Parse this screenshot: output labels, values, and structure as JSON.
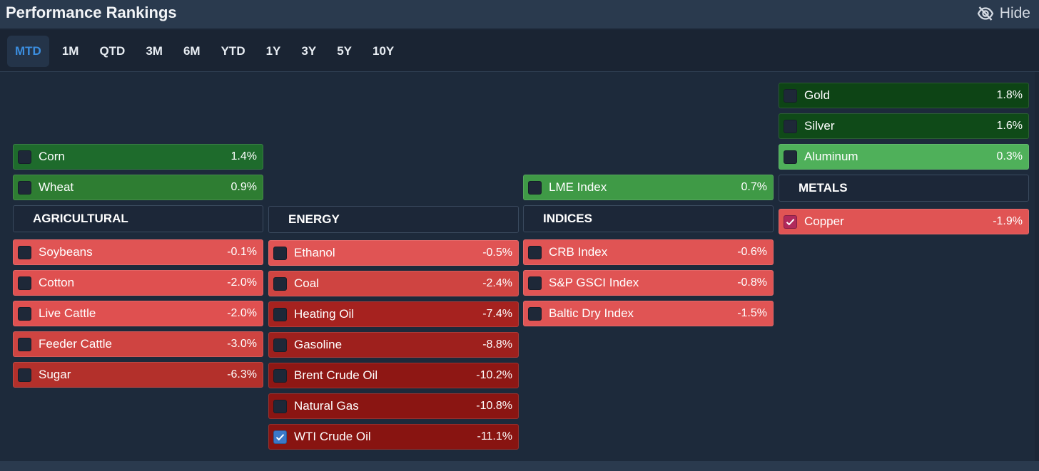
{
  "title": "Performance Rankings",
  "hide_label": "Hide",
  "tabs": [
    "MTD",
    "1M",
    "QTD",
    "3M",
    "6M",
    "YTD",
    "1Y",
    "3Y",
    "5Y",
    "10Y"
  ],
  "active_tab": "MTD",
  "columns": {
    "agricultural": {
      "header": "AGRICULTURAL",
      "positive": [
        {
          "name": "Corn",
          "value": "1.4%",
          "color": "#1e6b2c"
        },
        {
          "name": "Wheat",
          "value": "0.9%",
          "color": "#2e7d32"
        }
      ],
      "negative": [
        {
          "name": "Soybeans",
          "value": "-0.1%",
          "color": "#e05454"
        },
        {
          "name": "Cotton",
          "value": "-2.0%",
          "color": "#df5050"
        },
        {
          "name": "Live Cattle",
          "value": "-2.0%",
          "color": "#df5050"
        },
        {
          "name": "Feeder Cattle",
          "value": "-3.0%",
          "color": "#cf4441"
        },
        {
          "name": "Sugar",
          "value": "-6.3%",
          "color": "#b3302b"
        }
      ]
    },
    "energy": {
      "header": "ENERGY",
      "negative": [
        {
          "name": "Ethanol",
          "value": "-0.5%",
          "color": "#e05454"
        },
        {
          "name": "Coal",
          "value": "-2.4%",
          "color": "#cf4441"
        },
        {
          "name": "Heating Oil",
          "value": "-7.4%",
          "color": "#a6221f"
        },
        {
          "name": "Gasoline",
          "value": "-8.8%",
          "color": "#9e201d"
        },
        {
          "name": "Brent Crude Oil",
          "value": "-10.2%",
          "color": "#8e1714"
        },
        {
          "name": "Natural Gas",
          "value": "-10.8%",
          "color": "#8a1512"
        },
        {
          "name": "WTI Crude Oil",
          "value": "-11.1%",
          "color": "#881411",
          "checked": true
        }
      ]
    },
    "indices": {
      "header": "INDICES",
      "positive": [
        {
          "name": "LME Index",
          "value": "0.7%",
          "color": "#3f9a46"
        }
      ],
      "negative": [
        {
          "name": "CRB Index",
          "value": "-0.6%",
          "color": "#e05454"
        },
        {
          "name": "S&P GSCI Index",
          "value": "-0.8%",
          "color": "#e05454"
        },
        {
          "name": "Baltic Dry Index",
          "value": "-1.5%",
          "color": "#e05454"
        }
      ]
    },
    "metals": {
      "header": "METALS",
      "positive": [
        {
          "name": "Gold",
          "value": "1.8%",
          "color": "#0d4415"
        },
        {
          "name": "Silver",
          "value": "1.6%",
          "color": "#0f4a18"
        },
        {
          "name": "Aluminum",
          "value": "0.3%",
          "color": "#4fb05a"
        }
      ],
      "negative": [
        {
          "name": "Copper",
          "value": "-1.9%",
          "color": "#e05454",
          "checked": true
        }
      ]
    }
  }
}
